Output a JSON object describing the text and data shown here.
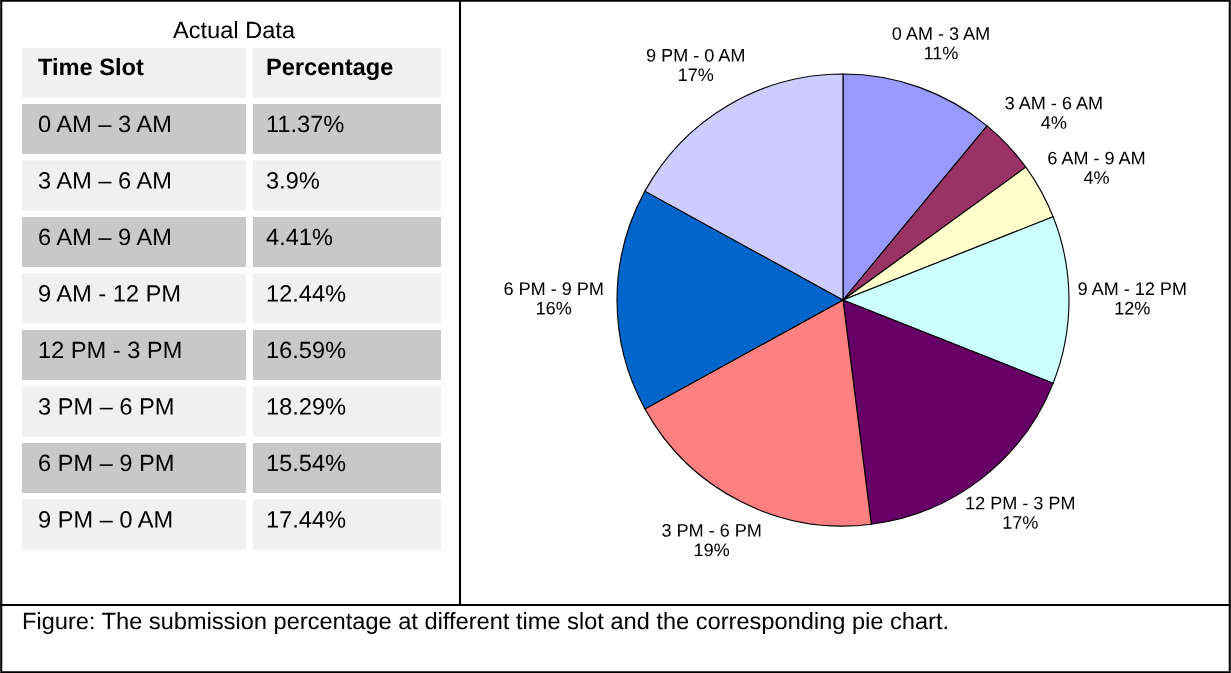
{
  "chart_data": [
    {
      "type": "other",
      "title": "Actual Data",
      "xlabel": "Time Slot",
      "ylabel": "Percentage",
      "categories": [
        "0 AM – 3 AM",
        "3 AM – 6 AM",
        "6 AM – 9 AM",
        "9 AM - 12 PM",
        "12 PM - 3 PM",
        "3 PM – 6 PM",
        "6 PM – 9 PM",
        "9 PM – 0 AM"
      ],
      "value_labels": [
        "11.37%",
        "3.9%",
        "4.41%",
        "12.44%",
        "16.59%",
        "18.29%",
        "15.54%",
        "17.44%"
      ]
    },
    {
      "type": "pie",
      "categories": [
        "0 AM - 3 AM",
        "3 AM - 6 AM",
        "6 AM - 9 AM",
        "9 AM - 12 PM",
        "12 PM - 3 PM",
        "3 PM - 6 PM",
        "6 PM - 9 PM",
        "9 PM - 0 AM"
      ],
      "values": [
        11,
        4,
        4,
        12,
        17,
        19,
        16,
        17
      ],
      "value_labels": [
        "11%",
        "4%",
        "4%",
        "12%",
        "17%",
        "19%",
        "16%",
        "17%"
      ],
      "colors": [
        "#9999ff",
        "#993366",
        "#ffffcc",
        "#ccffff",
        "#660066",
        "#ff8080",
        "#0066cc",
        "#ccccff"
      ],
      "annotations": [
        "Figure: The submission percentage at different time slot and the corresponding pie chart."
      ]
    }
  ]
}
